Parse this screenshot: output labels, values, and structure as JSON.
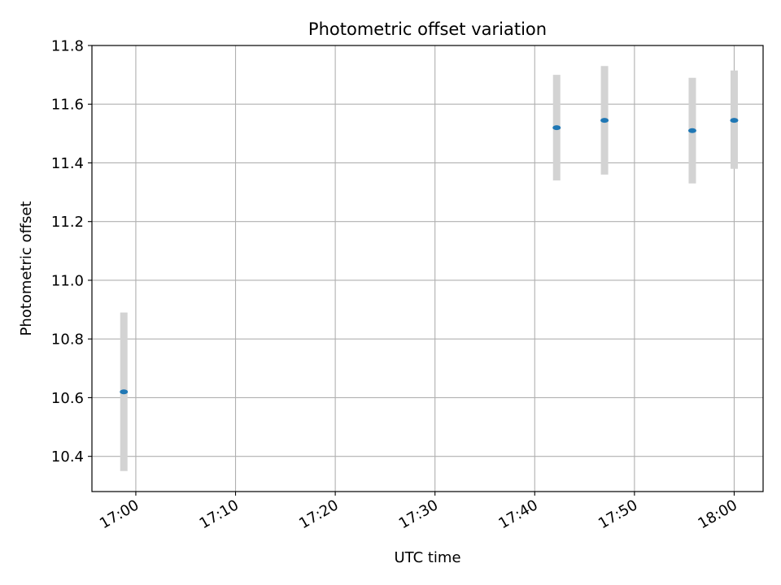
{
  "chart_data": {
    "type": "scatter",
    "title": "Photometric offset variation",
    "xlabel": "UTC time",
    "ylabel": "Photometric offset",
    "x_tick_labels": [
      "17:00",
      "17:10",
      "17:20",
      "17:30",
      "17:40",
      "17:50",
      "18:00"
    ],
    "y_tick_labels": [
      "10.4",
      "10.6",
      "10.8",
      "11.0",
      "11.2",
      "11.4",
      "11.6",
      "11.8"
    ],
    "xlim": [
      "16:55.6",
      "18:02.9"
    ],
    "ylim": [
      10.28,
      11.8
    ],
    "grid": true,
    "series": [
      {
        "points": [
          {
            "x": "16:58.8",
            "y": 10.62,
            "err_low": 10.35,
            "err_high": 10.89
          },
          {
            "x": "17:42.2",
            "y": 11.52,
            "err_low": 11.34,
            "err_high": 11.7
          },
          {
            "x": "17:47.0",
            "y": 11.545,
            "err_low": 11.36,
            "err_high": 11.73
          },
          {
            "x": "17:55.8",
            "y": 11.51,
            "err_low": 11.33,
            "err_high": 11.69
          },
          {
            "x": "18:00.0",
            "y": 11.545,
            "err_low": 11.38,
            "err_high": 11.715
          }
        ]
      }
    ],
    "colors": {
      "marker": "#1f77b4",
      "error_bar": "#d3d3d3",
      "grid": "#b0b0b0",
      "axes": "#000000"
    }
  }
}
